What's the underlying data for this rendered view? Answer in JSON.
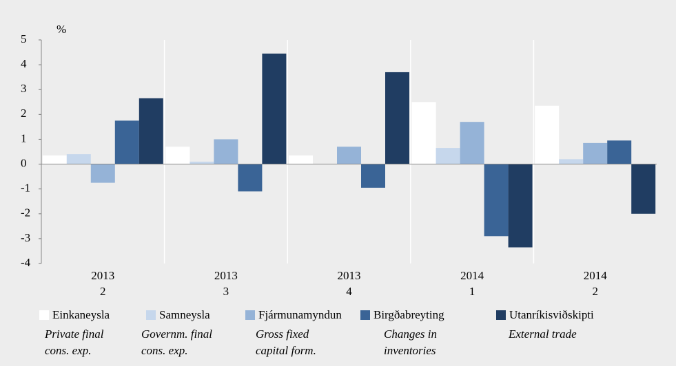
{
  "chart_data": {
    "type": "bar",
    "y_label": "%",
    "categories": [
      [
        "2013",
        "2"
      ],
      [
        "2013",
        "3"
      ],
      [
        "2013",
        "4"
      ],
      [
        "2014",
        "1"
      ],
      [
        "2014",
        "2"
      ]
    ],
    "series": [
      {
        "name": "Einkaneysla",
        "description": [
          "Private final",
          "cons. exp."
        ],
        "color": "#ffffff",
        "values": [
          0.35,
          0.7,
          0.35,
          2.5,
          2.35
        ]
      },
      {
        "name": "Samneysla",
        "description": [
          "Governm. final",
          "cons. exp."
        ],
        "color": "#c6d7ec",
        "values": [
          0.4,
          0.1,
          0,
          0.65,
          0.2
        ]
      },
      {
        "name": "Fjármunamyndun",
        "description": [
          "Gross fixed",
          "capital form."
        ],
        "color": "#95b3d7",
        "values": [
          -0.75,
          1.0,
          0.7,
          1.7,
          0.85
        ]
      },
      {
        "name": "Birgðabreyting",
        "description": [
          "Changes in",
          "inventories"
        ],
        "color": "#3a6496",
        "values": [
          1.75,
          -1.1,
          -0.95,
          -2.9,
          0.95
        ]
      },
      {
        "name": "Utanríkisviðskipti",
        "description": [
          "External trade"
        ],
        "color": "#203d62",
        "values": [
          2.65,
          4.45,
          3.7,
          -3.35,
          -2.0
        ]
      }
    ],
    "ylim": [
      -4,
      5
    ],
    "yticks": [
      -4,
      -3,
      -2,
      -1,
      0,
      1,
      2,
      3,
      4,
      5
    ],
    "grid": true
  }
}
